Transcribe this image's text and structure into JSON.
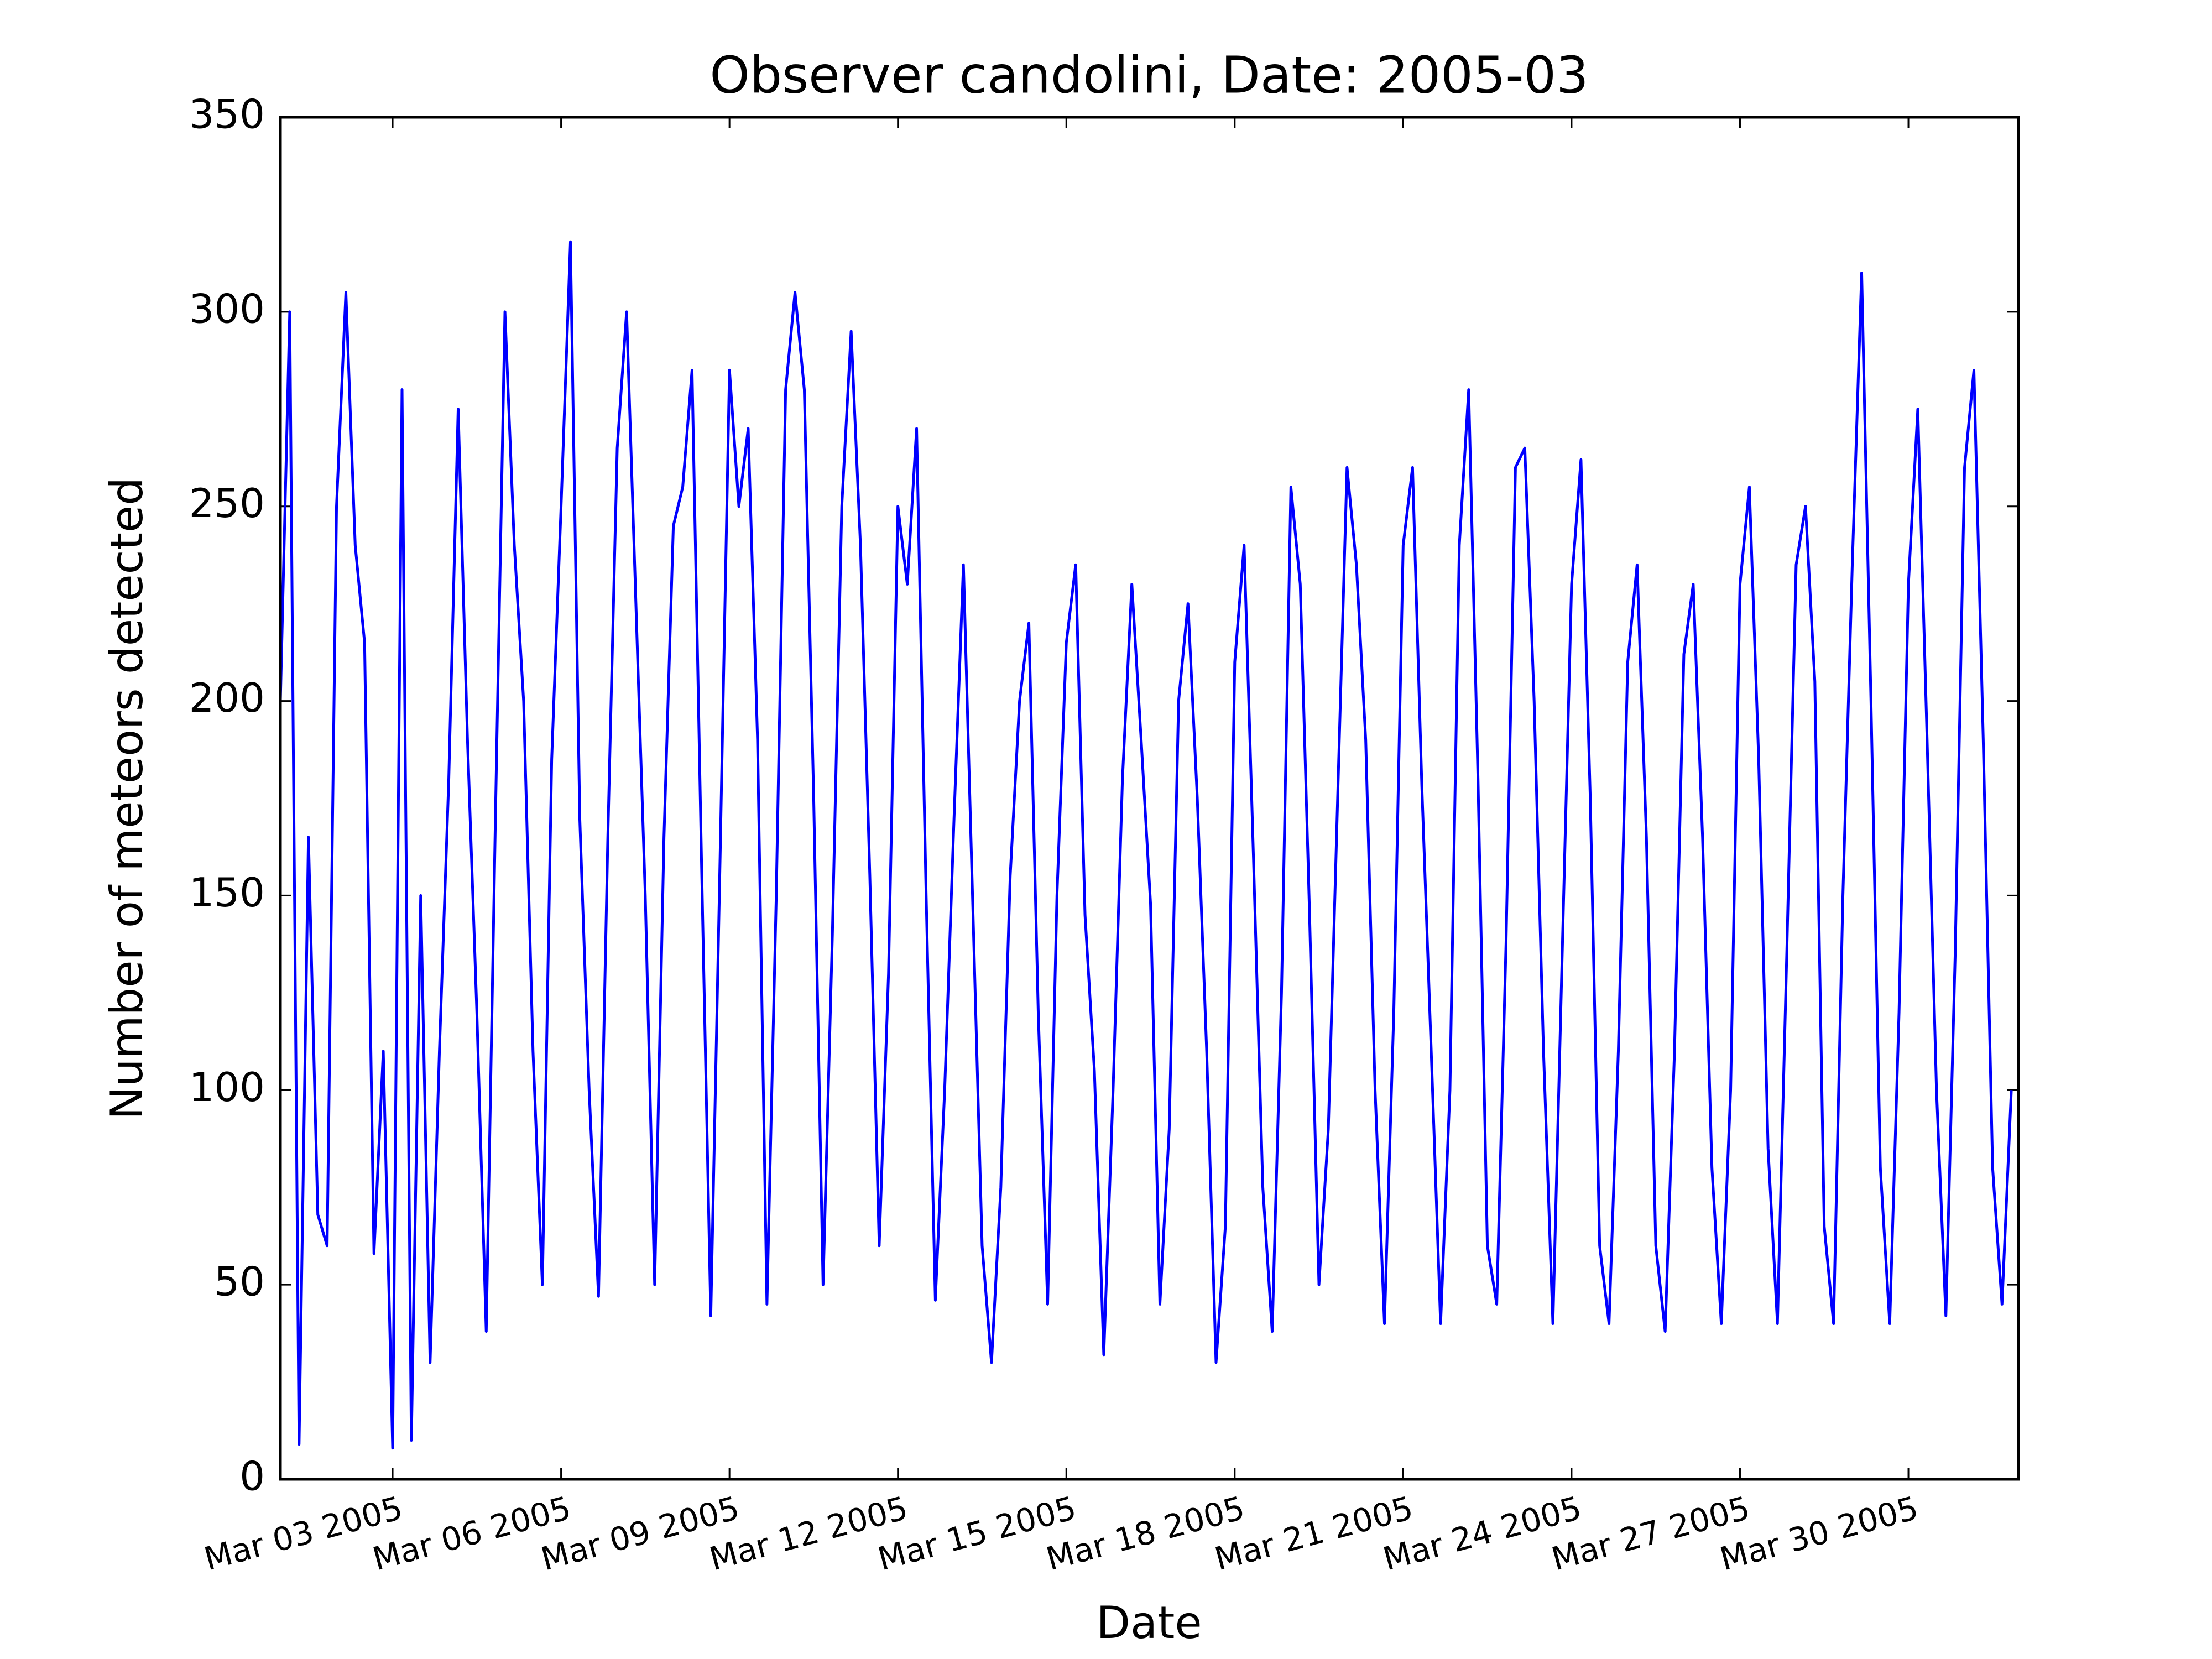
{
  "chart_data": {
    "type": "line",
    "title": "Observer candolini, Date: 2005-03",
    "xlabel": "Date",
    "ylabel": "Number of meteors detected",
    "color": "#0000ff",
    "x": [
      1,
      1.167,
      1.333,
      1.5,
      1.667,
      1.833,
      2,
      2.167,
      2.333,
      2.5,
      2.667,
      2.833,
      3,
      3.167,
      3.333,
      3.5,
      3.667,
      3.833,
      4,
      4.167,
      4.333,
      4.5,
      4.667,
      4.833,
      5,
      5.167,
      5.333,
      5.5,
      5.667,
      5.833,
      6,
      6.167,
      6.333,
      6.5,
      6.667,
      6.833,
      7,
      7.167,
      7.333,
      7.5,
      7.667,
      7.833,
      8,
      8.167,
      8.333,
      8.5,
      8.667,
      8.833,
      9,
      9.167,
      9.333,
      9.5,
      9.667,
      9.833,
      10,
      10.167,
      10.333,
      10.5,
      10.667,
      10.833,
      11,
      11.167,
      11.333,
      11.5,
      11.667,
      11.833,
      12,
      12.167,
      12.333,
      12.5,
      12.667,
      12.833,
      13,
      13.167,
      13.333,
      13.5,
      13.667,
      13.833,
      14,
      14.167,
      14.333,
      14.5,
      14.667,
      14.833,
      15,
      15.167,
      15.333,
      15.5,
      15.667,
      15.833,
      16,
      16.167,
      16.333,
      16.5,
      16.667,
      16.833,
      17,
      17.167,
      17.333,
      17.5,
      17.667,
      17.833,
      18,
      18.167,
      18.333,
      18.5,
      18.667,
      18.833,
      19,
      19.167,
      19.333,
      19.5,
      19.667,
      19.833,
      20,
      20.167,
      20.333,
      20.5,
      20.667,
      20.833,
      21,
      21.167,
      21.333,
      21.5,
      21.667,
      21.833,
      22,
      22.167,
      22.333,
      22.5,
      22.667,
      22.833,
      23,
      23.167,
      23.333,
      23.5,
      23.667,
      23.833,
      24,
      24.167,
      24.333,
      24.5,
      24.667,
      24.833,
      25,
      25.167,
      25.333,
      25.5,
      25.667,
      25.833,
      26,
      26.167,
      26.333,
      26.5,
      26.667,
      26.833,
      27,
      27.167,
      27.333,
      27.5,
      27.667,
      27.833,
      28,
      28.167,
      28.333,
      28.5,
      28.667,
      28.833,
      29,
      29.167,
      29.333,
      29.5,
      29.667,
      29.833,
      30,
      30.167,
      30.333,
      30.5,
      30.667,
      30.833,
      31,
      31.167,
      31.333,
      31.5,
      31.667,
      31.833
    ],
    "values": [
      200,
      300,
      9,
      165,
      68,
      60,
      250,
      305,
      240,
      215,
      58,
      110,
      8,
      280,
      10,
      150,
      30,
      110,
      180,
      275,
      190,
      120,
      38,
      172,
      300,
      240,
      200,
      110,
      50,
      185,
      250,
      318,
      170,
      100,
      47,
      165,
      265,
      300,
      225,
      150,
      50,
      165,
      245,
      255,
      285,
      160,
      42,
      160,
      285,
      250,
      270,
      190,
      45,
      150,
      280,
      305,
      280,
      175,
      50,
      140,
      250,
      295,
      240,
      155,
      60,
      130,
      250,
      230,
      270,
      152,
      46,
      100,
      170,
      235,
      148,
      60,
      30,
      75,
      155,
      200,
      220,
      120,
      45,
      150,
      215,
      235,
      145,
      105,
      32,
      100,
      180,
      230,
      190,
      148,
      45,
      90,
      200,
      225,
      175,
      110,
      30,
      65,
      210,
      240,
      160,
      75,
      38,
      125,
      255,
      230,
      145,
      50,
      90,
      175,
      260,
      235,
      190,
      100,
      40,
      120,
      240,
      260,
      178,
      110,
      40,
      100,
      240,
      280,
      180,
      60,
      45,
      138,
      260,
      265,
      200,
      110,
      40,
      135,
      230,
      262,
      175,
      60,
      40,
      110,
      210,
      235,
      165,
      60,
      38,
      110,
      212,
      230,
      165,
      80,
      40,
      100,
      230,
      255,
      185,
      85,
      40,
      135,
      235,
      250,
      205,
      65,
      40,
      150,
      235,
      310,
      200,
      80,
      40,
      120,
      230,
      275,
      190,
      100,
      42,
      135,
      260,
      285,
      190,
      80,
      45,
      100
    ],
    "xlim": [
      1,
      31.96
    ],
    "ylim": [
      0,
      350
    ],
    "xticks": [
      {
        "value": 3,
        "label": "Mar 03 2005"
      },
      {
        "value": 6,
        "label": "Mar 06 2005"
      },
      {
        "value": 9,
        "label": "Mar 09 2005"
      },
      {
        "value": 12,
        "label": "Mar 12 2005"
      },
      {
        "value": 15,
        "label": "Mar 15 2005"
      },
      {
        "value": 18,
        "label": "Mar 18 2005"
      },
      {
        "value": 21,
        "label": "Mar 21 2005"
      },
      {
        "value": 24,
        "label": "Mar 24 2005"
      },
      {
        "value": 27,
        "label": "Mar 27 2005"
      },
      {
        "value": 30,
        "label": "Mar 30 2005"
      }
    ],
    "yticks": [
      0,
      50,
      100,
      150,
      200,
      250,
      300,
      350
    ]
  }
}
